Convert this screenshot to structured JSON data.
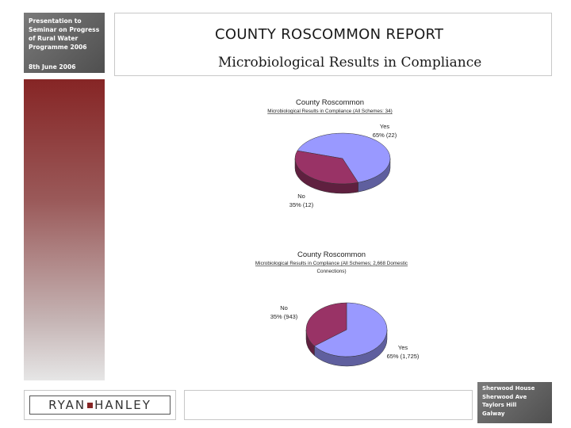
{
  "sidebar": {
    "presentation_lines": [
      "Presentation to",
      "Seminar on Progress",
      "of Rural Water",
      "Programme 2006"
    ],
    "date": "8th June 2006"
  },
  "header": {
    "title": "COUNTY ROSCOMMON REPORT",
    "subtitle": "Microbiological Results in Compliance"
  },
  "logo": {
    "left": "RYAN",
    "right": "HANLEY"
  },
  "address": {
    "lines": [
      "Sherwood House",
      "Sherwood Ave",
      "Taylors Hill",
      "Galway"
    ]
  },
  "colors": {
    "accent": "#862525",
    "slice_yes": "#9999ff",
    "slice_no": "#993366"
  },
  "chart_data": [
    {
      "type": "pie",
      "title": "County Roscommon",
      "subtitle": "Microbiological Results in Compliance (All Schemes: 34)",
      "slices": [
        {
          "label": "Yes",
          "value": 22,
          "percent": 65,
          "display": "65% (22)"
        },
        {
          "label": "No",
          "value": 12,
          "percent": 35,
          "display": "35% (12)"
        }
      ]
    },
    {
      "type": "pie",
      "title": "County Roscommon",
      "subtitle": "Microbiological Results in Compliance (All Schemes; 2,668 Domestic Connections)",
      "subtitle_lines": [
        "Microbiological Results in Compliance (All Schemes; 2,668 Domestic",
        "Connections)"
      ],
      "slices": [
        {
          "label": "Yes",
          "value": 1725,
          "percent": 65,
          "display": "65% (1,725)"
        },
        {
          "label": "No",
          "value": 943,
          "percent": 35,
          "display": "35% (943)"
        }
      ]
    }
  ]
}
